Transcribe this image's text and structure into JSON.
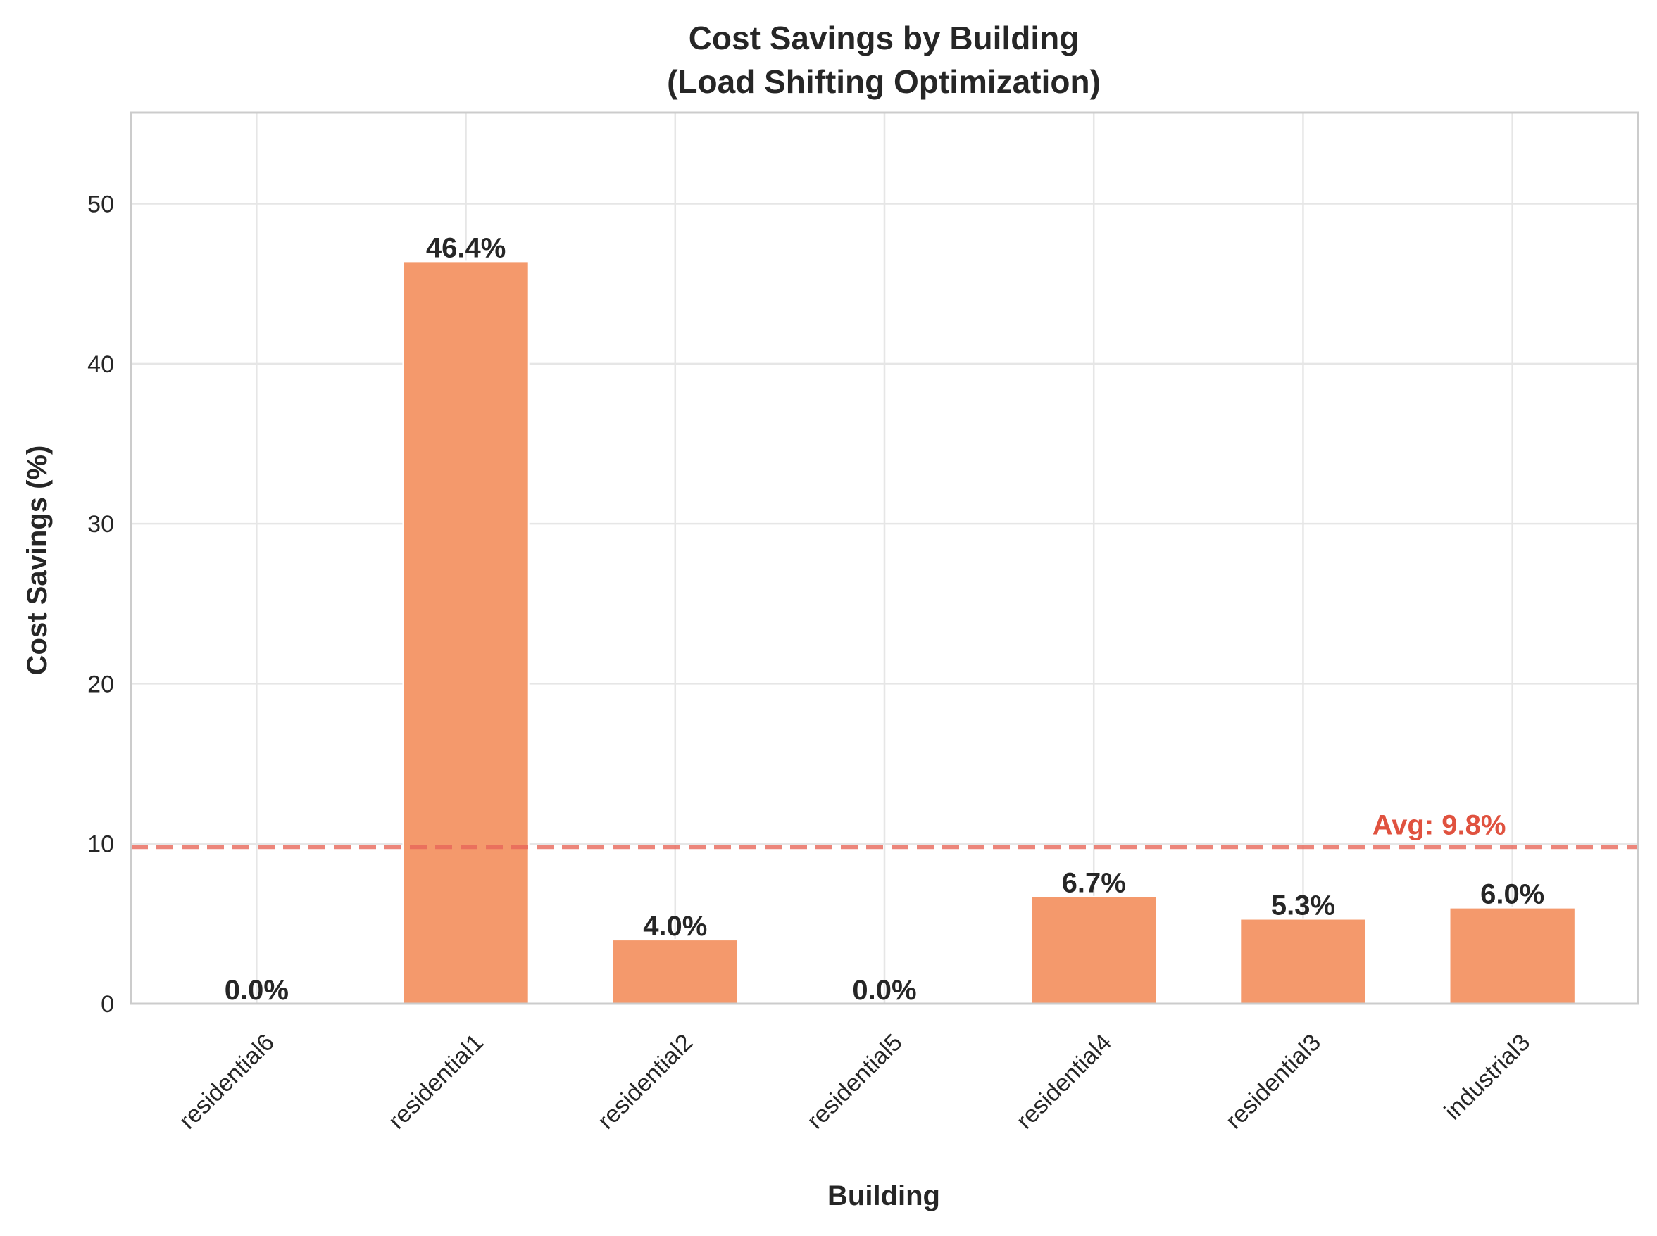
{
  "chart_data": {
    "type": "bar",
    "title_line1": "Cost Savings by Building",
    "title_line2": "(Load Shifting Optimization)",
    "xlabel": "Building",
    "ylabel": "Cost Savings (%)",
    "categories": [
      "residential6",
      "residential1",
      "residential2",
      "residential5",
      "residential4",
      "residential3",
      "industrial3"
    ],
    "values": [
      0.0,
      46.4,
      4.0,
      0.0,
      6.7,
      5.3,
      6.0
    ],
    "value_labels": [
      "0.0%",
      "46.4%",
      "4.0%",
      "0.0%",
      "6.7%",
      "5.3%",
      "6.0%"
    ],
    "ylim": [
      0,
      55.7
    ],
    "yticks": [
      0,
      10,
      20,
      30,
      40,
      50
    ],
    "ytick_labels": [
      "0",
      "10",
      "20",
      "30",
      "40",
      "50"
    ],
    "average": 9.8,
    "average_label": "Avg: 9.8%",
    "grid": true,
    "colors": {
      "bar": "#f4996c",
      "average_line": "#e8675a",
      "average_text": "#e0523f",
      "grid": "#e6e6e6",
      "spine": "#cccccc"
    }
  }
}
